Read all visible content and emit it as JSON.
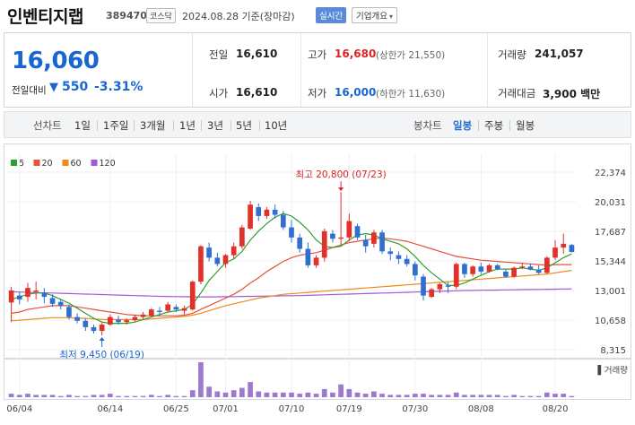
{
  "header": {
    "title": "인벤티지랩",
    "code": "389470",
    "market": "코스닥",
    "datetime": "2024.08.28 기준(장마감)",
    "realtime_label": "실시간",
    "company_label": "기업개요"
  },
  "summary": {
    "price": "16,060",
    "change_label": "전일대비",
    "change_value": "550",
    "change_pct": "-3.31%",
    "prev_close_label": "전일",
    "prev_close": "16,610",
    "open_label": "시가",
    "open": "16,610",
    "high_label": "고가",
    "high": "16,680",
    "upper_limit": "(상한가 21,550)",
    "low_label": "저가",
    "low": "16,000",
    "lower_limit": "(하한가 11,630)",
    "volume_label": "거래량",
    "volume": "241,057",
    "amount_label": "거래대금",
    "amount": "3,900 백만"
  },
  "period_tabs": {
    "line_label": "선차트",
    "line_items": [
      "1일",
      "1주일",
      "3개월",
      "1년",
      "3년",
      "5년",
      "10년"
    ],
    "candle_label": "봉차트",
    "candle_items": [
      "일봉",
      "주봉",
      "월봉"
    ],
    "candle_active": "일봉"
  },
  "legend": [
    {
      "label": "5",
      "color": "#2ca02c"
    },
    {
      "label": "20",
      "color": "#e8503a"
    },
    {
      "label": "60",
      "color": "#f08a1d"
    },
    {
      "label": "120",
      "color": "#a05ad4"
    }
  ],
  "chart_data": {
    "type": "candlestick",
    "y_ticks": [
      "22,374",
      "20,031",
      "17,687",
      "15,344",
      "13,001",
      "10,658",
      "8,315"
    ],
    "x_ticks": [
      "06/04",
      "06/14",
      "06/25",
      "07/01",
      "07/10",
      "07/19",
      "07/30",
      "08/08",
      "08/20"
    ],
    "annotation_high": "최고 20,800 (07/23)",
    "annotation_low": "최저 9,450 (06/19)",
    "volume_label": "거래량",
    "colors": {
      "up": "#e0312b",
      "down": "#2f6fd1",
      "volume": "#9b7ad0"
    },
    "candles": [
      [
        12050,
        13300,
        10500,
        13000
      ],
      [
        12600,
        12900,
        11900,
        12300
      ],
      [
        12500,
        13600,
        12100,
        13200
      ],
      [
        12900,
        13700,
        12300,
        13000
      ],
      [
        12800,
        13200,
        12000,
        12500
      ],
      [
        12400,
        12700,
        11700,
        11950
      ],
      [
        12100,
        12300,
        11500,
        11800
      ],
      [
        11700,
        11900,
        10700,
        10900
      ],
      [
        10900,
        11200,
        10400,
        10600
      ],
      [
        10600,
        10800,
        9800,
        10100
      ],
      [
        10100,
        10300,
        9600,
        9800
      ],
      [
        9800,
        10500,
        9450,
        10300
      ],
      [
        10300,
        11100,
        10200,
        10900
      ],
      [
        10700,
        11000,
        10300,
        10500
      ],
      [
        10500,
        10800,
        10300,
        10650
      ],
      [
        10650,
        11100,
        10500,
        10900
      ],
      [
        10900,
        11300,
        10700,
        11100
      ],
      [
        11000,
        11600,
        10900,
        11500
      ],
      [
        11400,
        11700,
        11000,
        11300
      ],
      [
        11400,
        12100,
        11300,
        11900
      ],
      [
        11700,
        11900,
        11300,
        11500
      ],
      [
        11400,
        11800,
        11100,
        11600
      ],
      [
        11500,
        13800,
        11400,
        13700
      ],
      [
        13700,
        16600,
        13500,
        16500
      ],
      [
        16400,
        16800,
        15300,
        15600
      ],
      [
        15600,
        16000,
        14900,
        15100
      ],
      [
        15100,
        15900,
        14800,
        15800
      ],
      [
        15800,
        16800,
        15500,
        16500
      ],
      [
        16500,
        18200,
        16300,
        18000
      ],
      [
        17900,
        20100,
        17800,
        19800
      ],
      [
        19600,
        19900,
        18500,
        18900
      ],
      [
        18900,
        19600,
        18700,
        19400
      ],
      [
        19400,
        19800,
        18700,
        19000
      ],
      [
        19000,
        19300,
        17800,
        18000
      ],
      [
        18000,
        18600,
        16800,
        17200
      ],
      [
        17200,
        17500,
        16000,
        16300
      ],
      [
        16300,
        16800,
        14800,
        15000
      ],
      [
        15000,
        15800,
        14800,
        15600
      ],
      [
        15600,
        17900,
        15300,
        17700
      ],
      [
        17500,
        17800,
        16800,
        17100
      ],
      [
        17100,
        20800,
        16600,
        17200
      ],
      [
        17200,
        19100,
        16900,
        18500
      ],
      [
        18100,
        18300,
        17000,
        17200
      ],
      [
        17000,
        17400,
        16000,
        16500
      ],
      [
        16700,
        17800,
        16400,
        17600
      ],
      [
        17600,
        17800,
        15900,
        16100
      ],
      [
        16100,
        16400,
        15400,
        15900
      ],
      [
        15800,
        16100,
        15100,
        15500
      ],
      [
        15500,
        15800,
        14900,
        15100
      ],
      [
        15100,
        15300,
        13800,
        14200
      ],
      [
        14100,
        14300,
        12200,
        12600
      ],
      [
        12500,
        13200,
        12400,
        13100
      ],
      [
        13100,
        13600,
        12800,
        13500
      ],
      [
        13400,
        13700,
        12800,
        13300
      ],
      [
        13300,
        15200,
        13100,
        15100
      ],
      [
        15100,
        15200,
        14000,
        14300
      ],
      [
        14300,
        15000,
        14100,
        14900
      ],
      [
        14900,
        15200,
        14300,
        14500
      ],
      [
        14500,
        15100,
        14400,
        15000
      ],
      [
        15000,
        15100,
        14600,
        14700
      ],
      [
        14500,
        14700,
        14000,
        14100
      ],
      [
        14100,
        14900,
        14000,
        14800
      ],
      [
        14800,
        15200,
        14700,
        14900
      ],
      [
        14900,
        15100,
        14600,
        14650
      ],
      [
        14650,
        15000,
        14300,
        14400
      ],
      [
        14400,
        15700,
        14300,
        15600
      ],
      [
        15600,
        17000,
        15400,
        16400
      ],
      [
        16400,
        17500,
        15900,
        16700
      ],
      [
        16610,
        16680,
        16000,
        16060
      ]
    ],
    "volumes": [
      3,
      2,
      3,
      2,
      2,
      2,
      1,
      2,
      1,
      1,
      2,
      2,
      3,
      1,
      1,
      1,
      1,
      2,
      1,
      2,
      1,
      1,
      6,
      30,
      9,
      5,
      4,
      6,
      8,
      13,
      5,
      4,
      4,
      4,
      4,
      3,
      4,
      3,
      7,
      4,
      11,
      7,
      4,
      3,
      5,
      3,
      2,
      2,
      2,
      3,
      3,
      2,
      2,
      2,
      4,
      2,
      2,
      2,
      2,
      2,
      1,
      2,
      1,
      1,
      1,
      4,
      3,
      3,
      1
    ],
    "ma5": [
      12300,
      12500,
      12700,
      12800,
      12800,
      12600,
      12300,
      12000,
      11600,
      11200,
      10800,
      10500,
      10400,
      10400,
      10400,
      10500,
      10700,
      10900,
      11100,
      11300,
      11400,
      11500,
      11900,
      12800,
      13800,
      14500,
      15200,
      15500,
      16100,
      17000,
      17700,
      18300,
      18800,
      19100,
      18900,
      18400,
      17800,
      17000,
      16500,
      16400,
      16500,
      17000,
      17400,
      17500,
      17400,
      17100,
      16900,
      16700,
      16300,
      15700,
      15000,
      14400,
      13900,
      13400,
      13400,
      13600,
      13900,
      14200,
      14500,
      14700,
      14700,
      14700,
      14800,
      14700,
      14600,
      14800,
      15200,
      15600,
      15900
    ],
    "ma20": [
      11200,
      11300,
      11500,
      11600,
      11700,
      11800,
      11800,
      11800,
      11700,
      11600,
      11500,
      11400,
      11300,
      11200,
      11100,
      11050,
      11000,
      11000,
      11000,
      11000,
      11000,
      11050,
      11200,
      11500,
      11800,
      12100,
      12400,
      12700,
      13100,
      13600,
      14000,
      14500,
      14900,
      15300,
      15600,
      15800,
      15900,
      16000,
      16200,
      16400,
      16600,
      16800,
      16900,
      17000,
      17100,
      17150,
      17100,
      17000,
      16900,
      16700,
      16500,
      16300,
      16100,
      15900,
      15700,
      15600,
      15500,
      15400,
      15350,
      15300,
      15250,
      15200,
      15150,
      15100,
      15050,
      15000,
      15050,
      15050,
      15050
    ],
    "ma60": [
      10600,
      10650,
      10700,
      10750,
      10800,
      10850,
      10850,
      10850,
      10800,
      10800,
      10750,
      10700,
      10700,
      10700,
      10700,
      10700,
      10700,
      10750,
      10800,
      10850,
      10900,
      10950,
      11050,
      11200,
      11400,
      11600,
      11800,
      11950,
      12100,
      12250,
      12400,
      12500,
      12600,
      12700,
      12750,
      12800,
      12850,
      12900,
      12950,
      13000,
      13050,
      13100,
      13150,
      13200,
      13250,
      13300,
      13350,
      13400,
      13450,
      13500,
      13550,
      13600,
      13650,
      13700,
      13750,
      13800,
      13850,
      13900,
      13950,
      14000,
      14050,
      14100,
      14150,
      14200,
      14250,
      14300,
      14400,
      14500,
      14600
    ],
    "ma120": [
      12900,
      12880,
      12860,
      12840,
      12820,
      12800,
      12780,
      12760,
      12740,
      12720,
      12700,
      12680,
      12660,
      12640,
      12620,
      12600,
      12580,
      12560,
      12540,
      12530,
      12520,
      12510,
      12500,
      12500,
      12500,
      12500,
      12510,
      12520,
      12530,
      12540,
      12550,
      12560,
      12570,
      12580,
      12590,
      12600,
      12620,
      12640,
      12660,
      12680,
      12700,
      12720,
      12740,
      12760,
      12780,
      12800,
      12820,
      12840,
      12860,
      12880,
      12900,
      12920,
      12940,
      12960,
      12980,
      13000,
      13010,
      13020,
      13030,
      13040,
      13050,
      13060,
      13070,
      13080,
      13090,
      13100,
      13110,
      13120,
      13130
    ]
  }
}
